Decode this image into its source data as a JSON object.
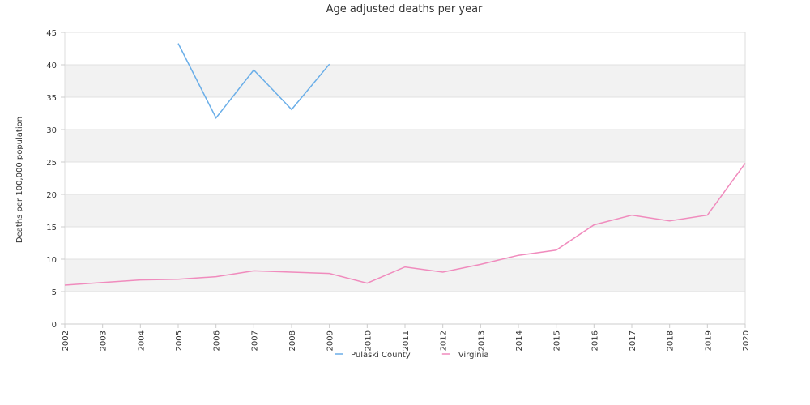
{
  "chart_data": {
    "type": "line",
    "title": "Age adjusted deaths per year",
    "xlabel": "",
    "ylabel": "Deaths per 100,000 population",
    "ylim": [
      0,
      45
    ],
    "yticks": [
      0,
      5,
      10,
      15,
      20,
      25,
      30,
      35,
      40,
      45
    ],
    "categories": [
      "2002",
      "2003",
      "2004",
      "2005",
      "2006",
      "2007",
      "2008",
      "2009",
      "2010",
      "2011",
      "2012",
      "2013",
      "2014",
      "2015",
      "2016",
      "2017",
      "2018",
      "2019",
      "2020"
    ],
    "grid": "horizontal-bands",
    "legend_position": "bottom",
    "series": [
      {
        "name": "Pulaski County",
        "color": "#6aaee8",
        "values": [
          null,
          null,
          null,
          43.3,
          31.8,
          39.2,
          33.1,
          40.1,
          null,
          null,
          null,
          null,
          null,
          null,
          null,
          null,
          null,
          null,
          null
        ]
      },
      {
        "name": "Virginia",
        "color": "#f08bbd",
        "values": [
          6.0,
          6.4,
          6.8,
          6.9,
          7.3,
          8.2,
          8.0,
          7.8,
          6.3,
          8.8,
          8.0,
          9.2,
          10.6,
          11.4,
          15.3,
          16.8,
          15.9,
          16.8,
          24.8
        ]
      }
    ]
  }
}
